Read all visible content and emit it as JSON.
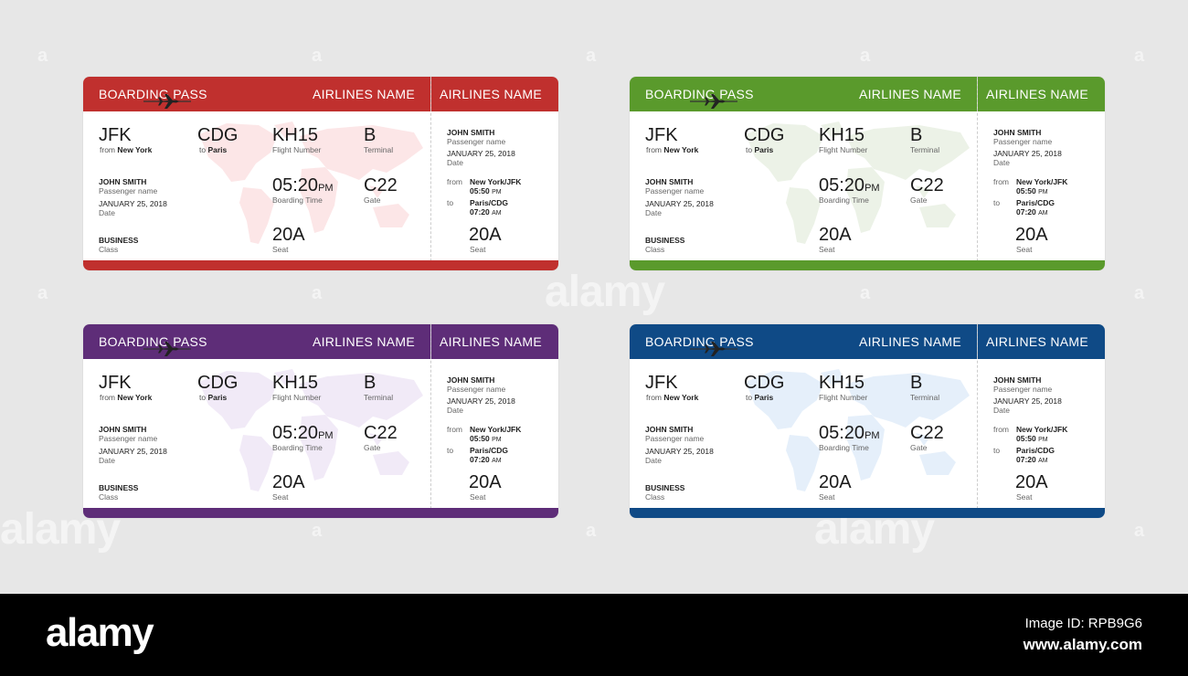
{
  "ticket": {
    "header_title": "BOARDING PASS",
    "airline_name": "AIRLINES NAME",
    "origin_code": "JFK",
    "origin_prefix": "from",
    "origin_city": "New York",
    "dest_code": "CDG",
    "dest_prefix": "to",
    "dest_city": "Paris",
    "flight_value": "KH15",
    "flight_label": "Flight Number",
    "terminal_value": "B",
    "terminal_label": "Terminal",
    "passenger_value": "JOHN SMITH",
    "passenger_label": "Passenger name",
    "date_value": "JANUARY 25, 2018",
    "date_label": "Date",
    "boarding_time_value": "05:20",
    "boarding_time_suffix": "PM",
    "boarding_time_label": "Boarding Time",
    "gate_value": "C22",
    "gate_label": "Gate",
    "class_value": "BUSINESS",
    "class_label": "Class",
    "seat_value": "20A",
    "seat_label": "Seat",
    "stub_from_label": "from",
    "stub_from_place": "New York/JFK",
    "stub_from_time": "05:50",
    "stub_from_suffix": "PM",
    "stub_to_label": "to",
    "stub_to_place": "Paris/CDG",
    "stub_to_time": "07:20",
    "stub_to_suffix": "AM"
  },
  "ticket_colors": {
    "red": "#c0302e",
    "green": "#5a9a2c",
    "purple": "#5e2d78",
    "blue": "#0f4a86"
  },
  "map_colors": {
    "red": "#f4a0a3",
    "green": "#b6cfa4",
    "purple": "#c9aee0",
    "blue": "#9ac3ec"
  },
  "watermark": {
    "small": "a",
    "big": "alamy"
  },
  "footer": {
    "logo": "alamy",
    "image_id": "Image ID: RPB9G6",
    "site": "www.alamy.com"
  }
}
